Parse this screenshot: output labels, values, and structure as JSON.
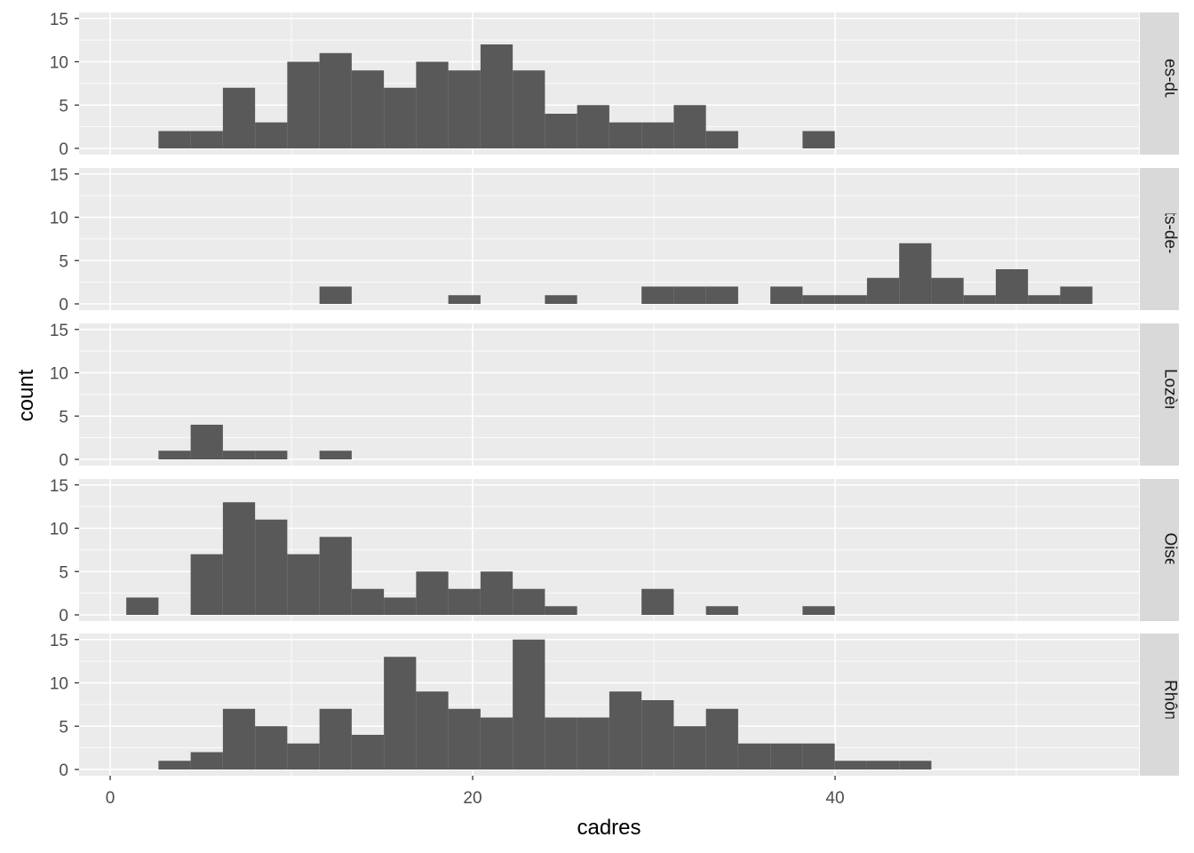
{
  "chart_data": {
    "type": "bar",
    "subtype": "faceted-histogram",
    "xlabel": "cadres",
    "ylabel": "count",
    "x_ticks": [
      0,
      20,
      40
    ],
    "y_ticks": [
      0,
      5,
      10,
      15
    ],
    "xlim": [
      -1.7,
      56.2
    ],
    "ylim": [
      0,
      15.8
    ],
    "bin_edges": [
      -0.8885,
      0.8885,
      2.6655,
      4.4425,
      6.2195,
      7.9965,
      9.7735,
      11.5505,
      13.3275,
      15.1045,
      16.8815,
      18.6585,
      20.4355,
      22.2125,
      23.9895,
      25.7665,
      27.5435,
      29.3205,
      31.0975,
      32.8745,
      34.6515,
      36.4285,
      38.2055,
      39.9825,
      41.7595,
      43.5365,
      45.3135,
      47.0905,
      48.8675,
      50.6445,
      52.4215,
      54.1985
    ],
    "grid": true,
    "bar_color": "#595959",
    "panel_background": "#ebebeb",
    "strip_background": "#d9d9d9",
    "facets": [
      {
        "name": "Bouches-du-Rhône",
        "counts": [
          0,
          0,
          2,
          2,
          7,
          3,
          10,
          11,
          9,
          7,
          10,
          9,
          12,
          9,
          4,
          5,
          3,
          3,
          5,
          2,
          0,
          0,
          2,
          0,
          0,
          0,
          0,
          0,
          0,
          0,
          0
        ]
      },
      {
        "name": "Hauts-de-Seine",
        "counts": [
          0,
          0,
          0,
          0,
          0,
          0,
          0,
          2,
          0,
          0,
          0,
          1,
          0,
          0,
          1,
          0,
          0,
          2,
          2,
          2,
          0,
          2,
          1,
          1,
          3,
          7,
          3,
          1,
          4,
          1,
          2
        ]
      },
      {
        "name": "Lozère",
        "counts": [
          0,
          0,
          1,
          4,
          1,
          1,
          0,
          1,
          0,
          0,
          0,
          0,
          0,
          0,
          0,
          0,
          0,
          0,
          0,
          0,
          0,
          0,
          0,
          0,
          0,
          0,
          0,
          0,
          0,
          0,
          0
        ]
      },
      {
        "name": "Oise",
        "counts": [
          0,
          2,
          0,
          7,
          13,
          11,
          7,
          9,
          3,
          2,
          5,
          3,
          5,
          3,
          1,
          0,
          0,
          3,
          0,
          1,
          0,
          0,
          1,
          0,
          0,
          0,
          0,
          0,
          0,
          0,
          0
        ]
      },
      {
        "name": "Rhône",
        "counts": [
          0,
          0,
          1,
          2,
          7,
          5,
          3,
          7,
          4,
          13,
          9,
          7,
          6,
          15,
          6,
          6,
          9,
          8,
          5,
          7,
          3,
          3,
          3,
          1,
          1,
          1,
          0,
          0,
          0,
          0,
          0
        ]
      }
    ]
  }
}
